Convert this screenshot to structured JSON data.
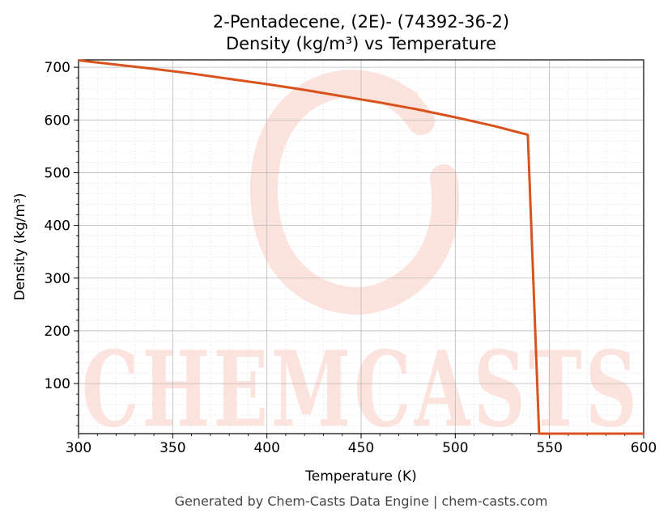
{
  "chart_data": {
    "type": "line",
    "title": "2-Pentadecene, (2E)- (74392-36-2)",
    "subtitle": "Density (kg/m³) vs Temperature",
    "xlabel": "Temperature (K)",
    "ylabel": "Density (kg/m³)",
    "xlim": [
      300,
      600
    ],
    "ylim": [
      5,
      714
    ],
    "xticks": [
      300,
      350,
      400,
      450,
      500,
      550,
      600
    ],
    "yticks": [
      100,
      200,
      300,
      400,
      500,
      600,
      700
    ],
    "grid": true,
    "minor_grid": true,
    "legend": "none",
    "series": [
      {
        "color": "#d9531e",
        "x": [
          300,
          320,
          340,
          360,
          380,
          400,
          420,
          440,
          460,
          480,
          500,
          520,
          538.5,
          544.5,
          600
        ],
        "y": [
          713,
          705,
          697,
          688,
          678,
          668,
          657,
          645,
          633,
          620,
          605,
          589,
          572,
          5,
          5
        ]
      }
    ]
  },
  "watermark": {
    "text": "CHEMCASTS"
  },
  "footer": "Generated by Chem-Casts Data Engine | chem-casts.com"
}
